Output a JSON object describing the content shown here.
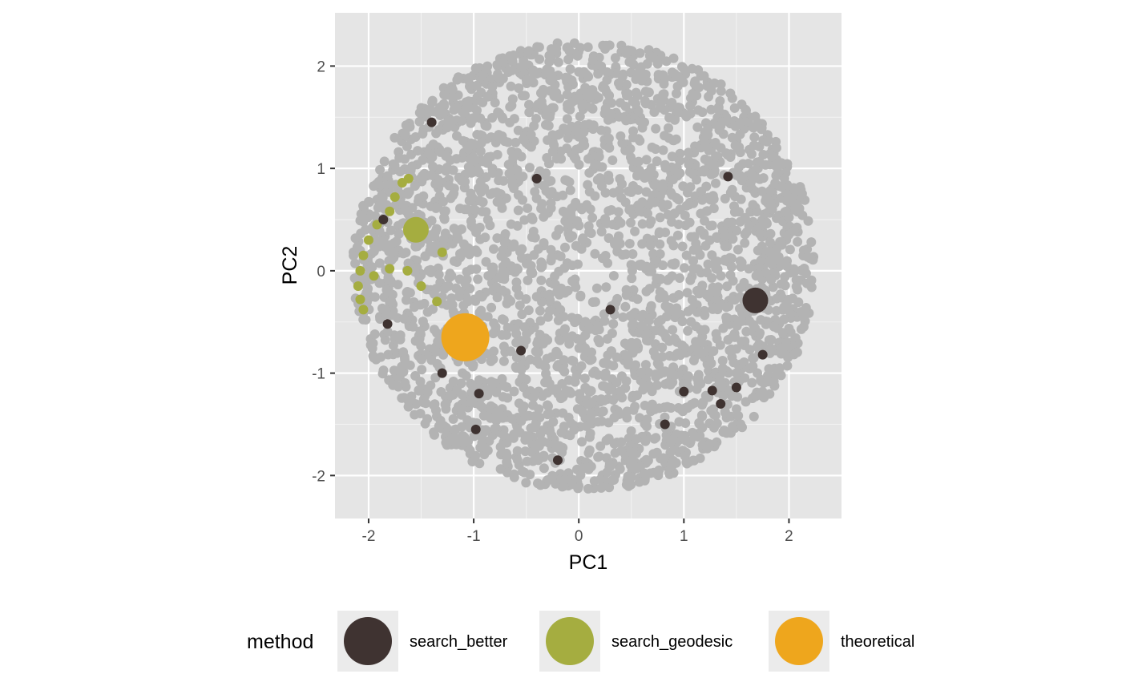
{
  "chart_data": {
    "type": "scatter",
    "title": "",
    "xlabel": "PC1",
    "ylabel": "PC2",
    "xlim": [
      -2.32,
      2.5
    ],
    "ylim": [
      -2.42,
      2.52
    ],
    "x_ticks": [
      -2,
      -1,
      0,
      1,
      2
    ],
    "y_ticks": [
      -2,
      -1,
      0,
      1,
      2
    ],
    "x_tick_labels": [
      "-2",
      "-1",
      "0",
      "1",
      "2"
    ],
    "y_tick_labels": [
      "-2",
      "-1",
      "0",
      "1",
      "2"
    ],
    "grid": true,
    "background_cloud": {
      "color": "#b3b3b3",
      "approx_points": 3000,
      "shape": "disc",
      "center": [
        0.05,
        0.05
      ],
      "radius": 2.2
    },
    "legend": {
      "title": "method",
      "position": "bottom",
      "entries": [
        {
          "label": "search_better",
          "color": "#3f3331"
        },
        {
          "label": "search_geodesic",
          "color": "#a5ad40"
        },
        {
          "label": "theoretical",
          "color": "#eea61d"
        }
      ]
    },
    "series": [
      {
        "name": "search_better",
        "color": "#3f3331",
        "points": [
          {
            "x": 1.68,
            "y": -0.29,
            "size": "large"
          },
          {
            "x": -1.86,
            "y": 0.5,
            "size": "small"
          },
          {
            "x": -1.82,
            "y": -0.52,
            "size": "small"
          },
          {
            "x": -1.3,
            "y": -1.0,
            "size": "small"
          },
          {
            "x": -0.55,
            "y": -0.78,
            "size": "small"
          },
          {
            "x": -0.4,
            "y": 0.9,
            "size": "small"
          },
          {
            "x": 0.3,
            "y": -0.38,
            "size": "small"
          },
          {
            "x": 1.42,
            "y": 0.92,
            "size": "small"
          },
          {
            "x": 1.75,
            "y": -0.82,
            "size": "small"
          },
          {
            "x": 1.0,
            "y": -1.18,
            "size": "small"
          },
          {
            "x": 1.27,
            "y": -1.17,
            "size": "small"
          },
          {
            "x": 1.5,
            "y": -1.14,
            "size": "small"
          },
          {
            "x": 1.35,
            "y": -1.3,
            "size": "small"
          },
          {
            "x": 0.82,
            "y": -1.5,
            "size": "small"
          },
          {
            "x": -0.95,
            "y": -1.2,
            "size": "small"
          },
          {
            "x": -1.4,
            "y": 1.45,
            "size": "small"
          },
          {
            "x": -0.98,
            "y": -1.55,
            "size": "small"
          },
          {
            "x": -0.2,
            "y": -1.85,
            "size": "small"
          }
        ]
      },
      {
        "name": "search_geodesic",
        "color": "#a5ad40",
        "points": [
          {
            "x": -1.55,
            "y": 0.4,
            "size": "large"
          },
          {
            "x": -1.68,
            "y": 0.86,
            "size": "small"
          },
          {
            "x": -1.62,
            "y": 0.9,
            "size": "small"
          },
          {
            "x": -1.75,
            "y": 0.72,
            "size": "small"
          },
          {
            "x": -1.8,
            "y": 0.58,
            "size": "small"
          },
          {
            "x": -1.92,
            "y": 0.45,
            "size": "small"
          },
          {
            "x": -2.0,
            "y": 0.3,
            "size": "small"
          },
          {
            "x": -2.05,
            "y": 0.15,
            "size": "small"
          },
          {
            "x": -2.08,
            "y": 0.0,
            "size": "small"
          },
          {
            "x": -2.1,
            "y": -0.15,
            "size": "small"
          },
          {
            "x": -2.08,
            "y": -0.28,
            "size": "small"
          },
          {
            "x": -2.05,
            "y": -0.38,
            "size": "small"
          },
          {
            "x": -1.95,
            "y": -0.05,
            "size": "small"
          },
          {
            "x": -1.8,
            "y": 0.02,
            "size": "small"
          },
          {
            "x": -1.63,
            "y": 0.0,
            "size": "small"
          },
          {
            "x": -1.5,
            "y": -0.15,
            "size": "small"
          },
          {
            "x": -1.35,
            "y": -0.3,
            "size": "small"
          },
          {
            "x": -1.3,
            "y": 0.18,
            "size": "small"
          }
        ]
      },
      {
        "name": "theoretical",
        "color": "#eea61d",
        "points": [
          {
            "x": -1.08,
            "y": -0.65,
            "size": "xlarge"
          }
        ]
      }
    ]
  }
}
